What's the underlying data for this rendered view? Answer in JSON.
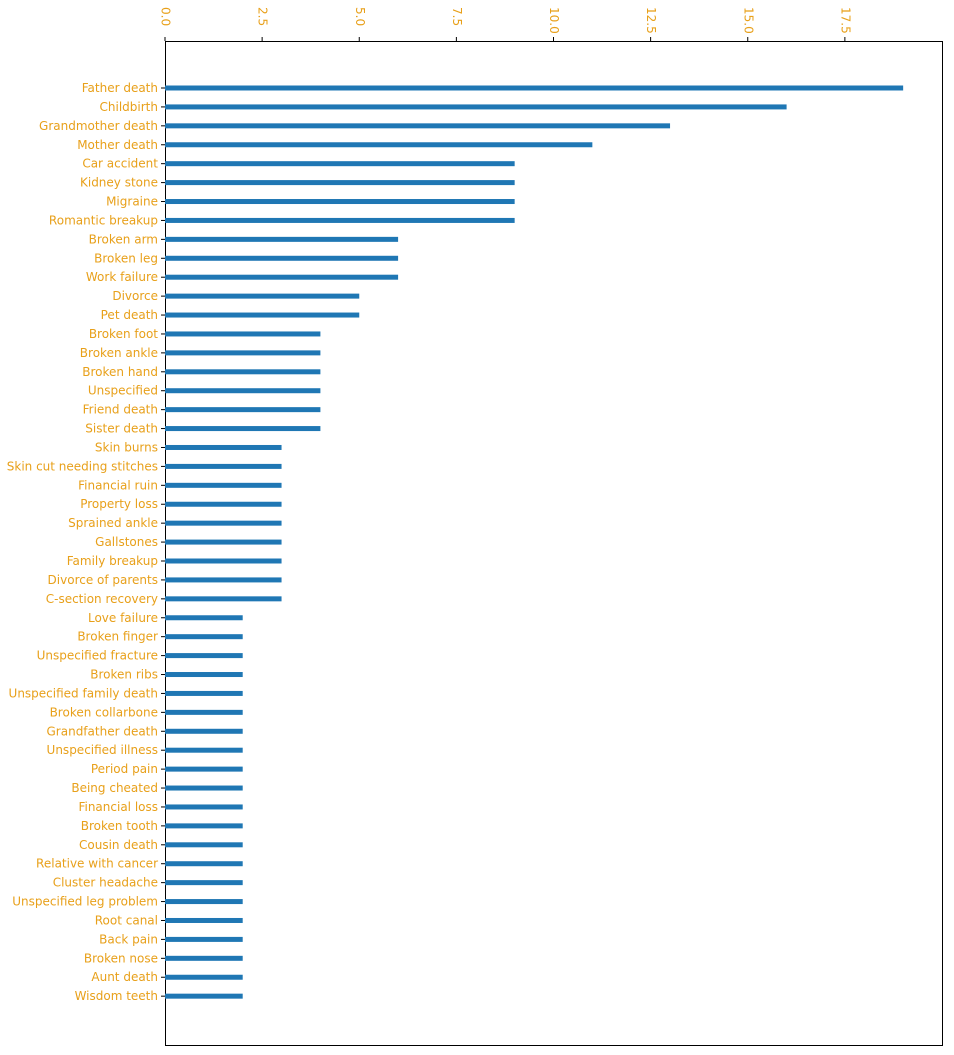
{
  "chart_data": {
    "type": "bar",
    "orientation": "horizontal",
    "title": "",
    "xlabel": "",
    "ylabel": "",
    "xlim": [
      0,
      20
    ],
    "x_ticks": [
      0,
      2.5,
      5,
      7.5,
      10,
      12.5,
      15,
      17.5
    ],
    "x_tick_labels": [
      "0.0",
      "2.5",
      "5.0",
      "7.5",
      "10.0",
      "12.5",
      "15.0",
      "17.5"
    ],
    "x_axis_position": "top",
    "tick_label_rotation_deg": 90,
    "grid": false,
    "legend": "none",
    "colors": {
      "bar": "#1f77b4",
      "text": "#e8a01a",
      "axis": "#000000"
    },
    "categories": [
      "Father death",
      "Childbirth",
      "Grandmother death",
      "Mother death",
      "Car accident",
      "Kidney stone",
      "Migraine",
      "Romantic breakup",
      "Broken arm",
      "Broken leg",
      "Work failure",
      "Divorce",
      "Pet death",
      "Broken foot",
      "Broken ankle",
      "Broken hand",
      "Unspecified",
      "Friend death",
      "Sister death",
      "Skin burns",
      "Skin cut needing stitches",
      "Financial ruin",
      "Property loss",
      "Sprained ankle",
      "Gallstones",
      "Family breakup",
      "Divorce of parents",
      "C-section recovery",
      "Love failure",
      "Broken finger",
      "Unspecified fracture",
      "Broken ribs",
      "Unspecified family death",
      "Broken collarbone",
      "Grandfather death",
      "Unspecified illness",
      "Period pain",
      "Being cheated",
      "Financial loss",
      "Broken tooth",
      "Cousin death",
      "Relative with cancer",
      "Cluster headache",
      "Unspecified leg problem",
      "Root canal",
      "Back pain",
      "Broken nose",
      "Aunt death",
      "Wisdom teeth"
    ],
    "values": [
      19,
      16,
      13,
      11,
      9,
      9,
      9,
      9,
      6,
      6,
      6,
      5,
      5,
      4,
      4,
      4,
      4,
      4,
      4,
      3,
      3,
      3,
      3,
      3,
      3,
      3,
      3,
      3,
      2,
      2,
      2,
      2,
      2,
      2,
      2,
      2,
      2,
      2,
      2,
      2,
      2,
      2,
      2,
      2,
      2,
      2,
      2,
      2,
      2
    ]
  }
}
